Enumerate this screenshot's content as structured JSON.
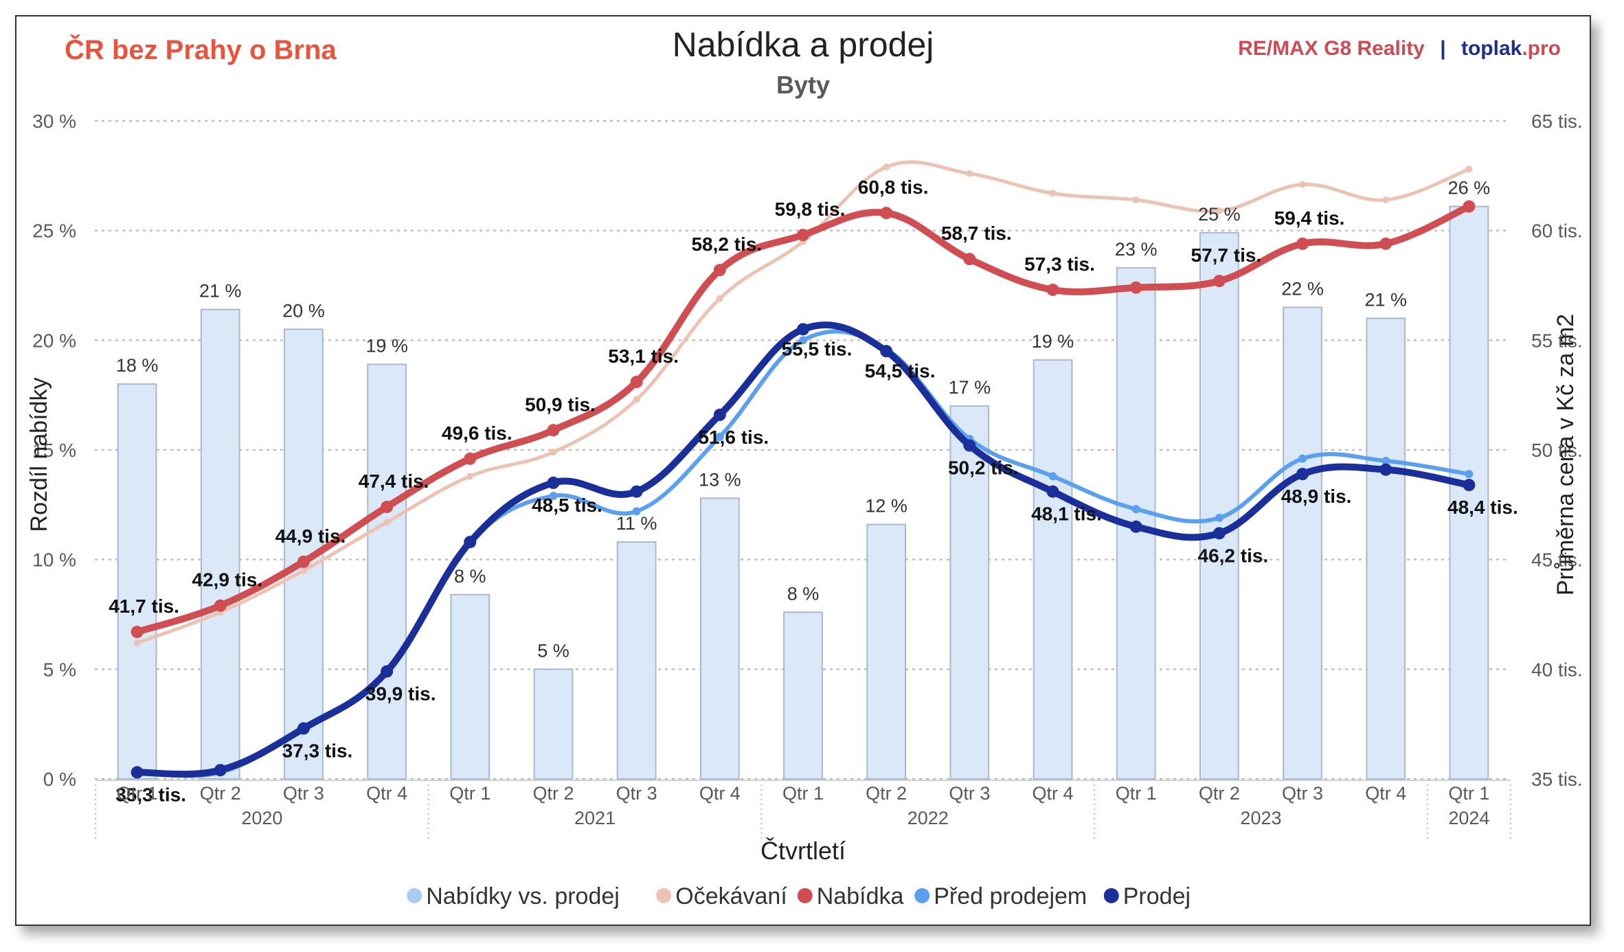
{
  "header": {
    "region": "ČR bez Prahy o Brna",
    "brand_remax": "RE/MAX G8 Reality",
    "brand_sep": "|",
    "brand_toplak": "toplak",
    "brand_toplak_suffix": ".pro"
  },
  "colors": {
    "region": "#e8553f",
    "remax": "#cd4c54",
    "toplak": "#1f2e8c",
    "bars_fill": "#dbe8f8",
    "bars_stroke": "#a9b8cc",
    "ocekavani": "#ecc3b3",
    "nabidka": "#d04d52",
    "pred_prodejem": "#5aa0ef",
    "prodej": "#1a2f9a",
    "grid": "#bdbdbd",
    "axis_text": "#595959"
  },
  "chart_data": {
    "type": "bar+line",
    "title": "Nabídka a prodej",
    "subtitle": "Byty",
    "xlabel": "Čtvrtletí",
    "ylabel_left": "Rozdíl nabídky",
    "ylabel_right": "Průměrna cena v Kč za m2",
    "ylim_left": [
      0,
      30
    ],
    "ylim_right": [
      35,
      65
    ],
    "yticks_left": [
      "0 %",
      "5 %",
      "10 %",
      "15 %",
      "20 %",
      "25 %",
      "30 %"
    ],
    "yticks_right": [
      "35 tis.",
      "40 tis.",
      "45 tis.",
      "50 tis.",
      "55 tis.",
      "60 tis.",
      "65 tis."
    ],
    "grid": "horizontal dotted",
    "legend_position": "bottom",
    "categories": [
      "Qtr 1",
      "Qtr 2",
      "Qtr 3",
      "Qtr 4",
      "Qtr 1",
      "Qtr 2",
      "Qtr 3",
      "Qtr 4",
      "Qtr 1",
      "Qtr 2",
      "Qtr 3",
      "Qtr 4",
      "Qtr 1",
      "Qtr 2",
      "Qtr 3",
      "Qtr 4",
      "Qtr 1"
    ],
    "year_groups": [
      {
        "label": "2020",
        "count": 4
      },
      {
        "label": "2021",
        "count": 4
      },
      {
        "label": "2022",
        "count": 4
      },
      {
        "label": "2023",
        "count": 4
      },
      {
        "label": "2024",
        "count": 1
      }
    ],
    "series": [
      {
        "name": "Nabídky vs. prodej",
        "kind": "bar",
        "axis": "left",
        "values": [
          18,
          21.4,
          20.5,
          18.9,
          8.4,
          5,
          10.8,
          12.8,
          7.6,
          11.6,
          17,
          19.1,
          23.3,
          24.9,
          21.5,
          21,
          26.1
        ],
        "labels": [
          "18 %",
          "21 %",
          "20 %",
          "19 %",
          "8 %",
          "5 %",
          "11 %",
          "13 %",
          "8 %",
          "12 %",
          "17 %",
          "19 %",
          "23 %",
          "25 %",
          "22 %",
          "21 %",
          "26 %"
        ]
      },
      {
        "name": "Očekávaní",
        "kind": "line",
        "axis": "right",
        "values": [
          41.2,
          42.6,
          44.5,
          46.7,
          48.8,
          49.9,
          52.3,
          56.9,
          59.5,
          62.9,
          62.6,
          61.7,
          61.4,
          60.9,
          62.1,
          61.4,
          62.8
        ]
      },
      {
        "name": "Nabídka",
        "kind": "line",
        "axis": "right",
        "values": [
          41.7,
          42.9,
          44.9,
          47.4,
          49.6,
          50.9,
          53.1,
          58.2,
          59.8,
          60.8,
          58.7,
          57.3,
          57.4,
          57.7,
          59.4,
          59.4,
          61.1
        ],
        "labels": [
          "41,7 tis.",
          "42,9 tis.",
          "44,9 tis.",
          "47,4 tis.",
          "49,6 tis.",
          "50,9 tis.",
          "53,1 tis.",
          "58,2 tis.",
          "59,8 tis.",
          "60,8 tis.",
          "58,7 tis.",
          "57,3 tis.",
          "",
          "57,7 tis.",
          "59,4 tis.",
          "",
          ""
        ]
      },
      {
        "name": "Před prodejem",
        "kind": "line",
        "axis": "right",
        "values": [
          35.3,
          35.3,
          37.3,
          39.9,
          45.8,
          47.9,
          47.2,
          50.6,
          55.0,
          54.6,
          50.5,
          48.8,
          47.3,
          46.9,
          49.6,
          49.5,
          48.9
        ]
      },
      {
        "name": "Prodej",
        "kind": "line",
        "axis": "right",
        "values": [
          35.3,
          35.4,
          37.3,
          39.9,
          45.8,
          48.5,
          48.1,
          51.6,
          55.5,
          54.5,
          50.2,
          48.1,
          46.5,
          46.2,
          48.9,
          49.1,
          48.4
        ],
        "labels": [
          "35,3 tis.",
          "",
          "37,3 tis.",
          "39,9 tis.",
          "",
          "48,5 tis.",
          "",
          "51,6 tis.",
          "55,5 tis.",
          "54,5 tis.",
          "50,2 tis.",
          "48,1 tis.",
          "",
          "46,2 tis.",
          "48,9 tis.",
          "",
          "48,4 tis."
        ]
      }
    ]
  }
}
